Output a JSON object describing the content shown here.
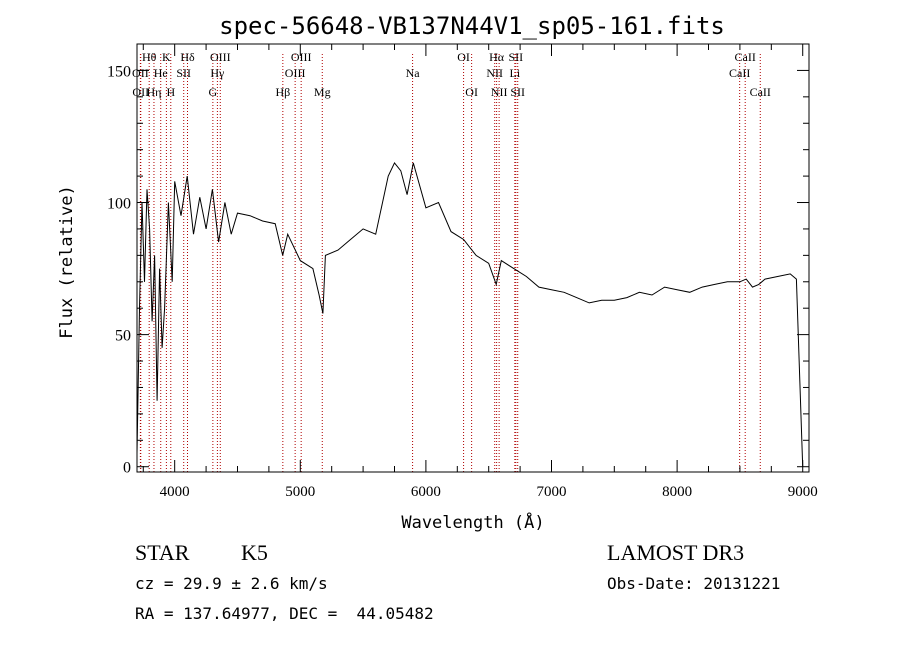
{
  "colors": {
    "background": "#ffffff",
    "spectrum": "#000000",
    "line_marker": "#b00000"
  },
  "chart_data": {
    "type": "line",
    "title": "spec-56648-VB137N44V1_sp05-161.fits",
    "xlabel": "Wavelength (Å)",
    "ylabel": "Flux (relative)",
    "xlim": [
      3700,
      9050
    ],
    "ylim": [
      -2,
      160
    ],
    "xticks": [
      4000,
      5000,
      6000,
      7000,
      8000,
      9000
    ],
    "yticks": [
      0,
      50,
      100,
      150
    ],
    "grid": false,
    "legend": "none",
    "series": [
      {
        "x": [
          3700,
          3720,
          3740,
          3760,
          3780,
          3800,
          3820,
          3840,
          3860,
          3880,
          3900,
          3920,
          3950,
          3980,
          4000,
          4050,
          4100,
          4150,
          4200,
          4250,
          4300,
          4350,
          4400,
          4450,
          4500,
          4600,
          4700,
          4800,
          4860,
          4900,
          5000,
          5100,
          5150,
          5180,
          5200,
          5300,
          5400,
          5500,
          5600,
          5700,
          5750,
          5800,
          5850,
          5900,
          6000,
          6100,
          6200,
          6300,
          6400,
          6500,
          6560,
          6600,
          6700,
          6800,
          6900,
          7000,
          7100,
          7200,
          7300,
          7400,
          7500,
          7600,
          7700,
          7800,
          7900,
          8000,
          8100,
          8200,
          8300,
          8400,
          8500,
          8550,
          8600,
          8650,
          8700,
          8800,
          8900,
          8950,
          9000
        ],
        "y": [
          5,
          60,
          100,
          70,
          105,
          90,
          55,
          80,
          25,
          75,
          45,
          60,
          100,
          70,
          108,
          95,
          110,
          88,
          102,
          90,
          105,
          85,
          100,
          88,
          96,
          95,
          93,
          92,
          80,
          88,
          78,
          75,
          65,
          58,
          80,
          82,
          86,
          90,
          88,
          110,
          115,
          112,
          103,
          115,
          98,
          100,
          89,
          86,
          80,
          77,
          69,
          78,
          75,
          72,
          68,
          67,
          66,
          64,
          62,
          63,
          63,
          64,
          66,
          65,
          68,
          67,
          66,
          68,
          69,
          70,
          70,
          71,
          68,
          69,
          71,
          72,
          73,
          71,
          0
        ]
      }
    ],
    "line_labels": [
      {
        "label": "Hθ",
        "x": 3797,
        "row": 1
      },
      {
        "label": "OII",
        "x": 3727,
        "row": 2
      },
      {
        "label": "OII",
        "x": 3730,
        "row": 3
      },
      {
        "label": "K",
        "x": 3934,
        "row": 1
      },
      {
        "label": "He",
        "x": 3889,
        "row": 2
      },
      {
        "label": "Hη",
        "x": 3835,
        "row": 3
      },
      {
        "label": "Hδ",
        "x": 4102,
        "row": 1
      },
      {
        "label": "SII",
        "x": 4072,
        "row": 2
      },
      {
        "label": "H",
        "x": 3969,
        "row": 3
      },
      {
        "label": "OIII",
        "x": 4363,
        "row": 1
      },
      {
        "label": "Hγ",
        "x": 4340,
        "row": 2
      },
      {
        "label": "G",
        "x": 4304,
        "row": 3
      },
      {
        "label": "OIII",
        "x": 5007,
        "row": 1
      },
      {
        "label": "OIII",
        "x": 4959,
        "row": 2
      },
      {
        "label": "Hβ",
        "x": 4861,
        "row": 3
      },
      {
        "label": "Mg",
        "x": 5175,
        "row": 3
      },
      {
        "label": "Na",
        "x": 5894,
        "row": 2
      },
      {
        "label": "OI",
        "x": 6300,
        "row": 1
      },
      {
        "label": "OI",
        "x": 6364,
        "row": 3
      },
      {
        "label": "Hα",
        "x": 6563,
        "row": 1
      },
      {
        "label": "SII",
        "x": 6716,
        "row": 1
      },
      {
        "label": "NII",
        "x": 6548,
        "row": 2
      },
      {
        "label": "Li",
        "x": 6708,
        "row": 2
      },
      {
        "label": "NII",
        "x": 6583,
        "row": 3
      },
      {
        "label": "SII",
        "x": 6731,
        "row": 3
      },
      {
        "label": "CaII",
        "x": 8542,
        "row": 1
      },
      {
        "label": "CaII",
        "x": 8498,
        "row": 2
      },
      {
        "label": "CaII",
        "x": 8662,
        "row": 3
      }
    ]
  },
  "info": {
    "class_label": "STAR",
    "subclass": "K5",
    "survey": "LAMOST DR3",
    "redshift": "cz = 29.9 ± 2.6 km/s",
    "obs_date": "Obs-Date: 20131221",
    "coords": "RA = 137.64977, DEC =  44.05482"
  }
}
